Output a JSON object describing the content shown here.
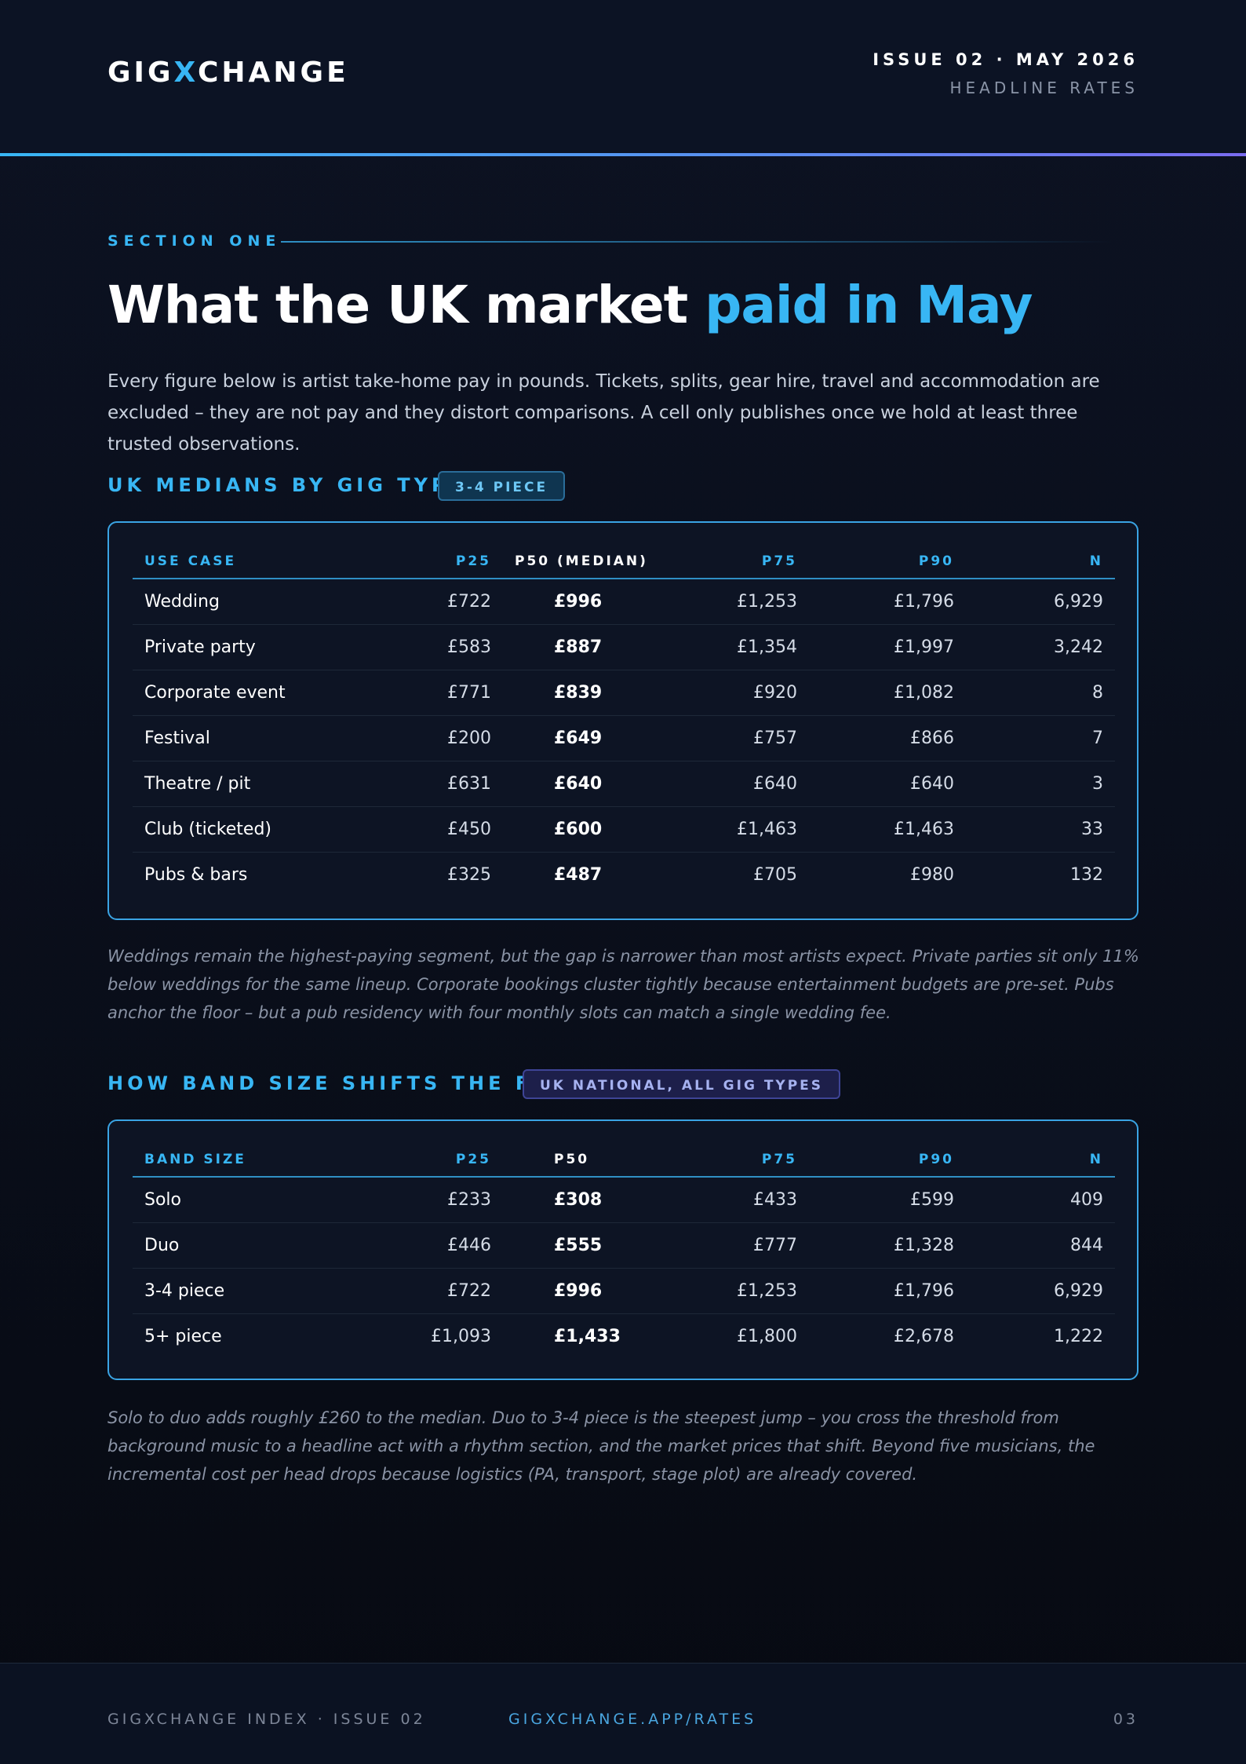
{
  "header": {
    "brand_pre": "GIG",
    "brand_accent": "X",
    "brand_post": "CHANGE",
    "issue": "ISSUE 02 · MAY 2026",
    "subtitle": "HEADLINE RATES"
  },
  "section": {
    "label": "SECTION ONE",
    "headline_main": "What the UK market ",
    "headline_accent": "paid in May",
    "intro": "Every figure below is artist take-home pay in pounds. Tickets, splits, gear hire, travel and accommodation are excluded – they are not pay and they distort comparisons. A cell only publishes once we hold at least three trusted observations."
  },
  "gig_type_table": {
    "title": "UK MEDIANS BY GIG TYPE",
    "badge": "3-4 PIECE",
    "columns": [
      "USE CASE",
      "P25",
      "P50 (MEDIAN)",
      "P75",
      "P90",
      "N"
    ],
    "rows": [
      {
        "label": "Wedding",
        "p25": "£722",
        "p50": "£996",
        "p75": "£1,253",
        "p90": "£1,796",
        "n": "6,929"
      },
      {
        "label": "Private party",
        "p25": "£583",
        "p50": "£887",
        "p75": "£1,354",
        "p90": "£1,997",
        "n": "3,242"
      },
      {
        "label": "Corporate event",
        "p25": "£771",
        "p50": "£839",
        "p75": "£920",
        "p90": "£1,082",
        "n": "8"
      },
      {
        "label": "Festival",
        "p25": "£200",
        "p50": "£649",
        "p75": "£757",
        "p90": "£866",
        "n": "7"
      },
      {
        "label": "Theatre / pit",
        "p25": "£631",
        "p50": "£640",
        "p75": "£640",
        "p90": "£640",
        "n": "3"
      },
      {
        "label": "Club (ticketed)",
        "p25": "£450",
        "p50": "£600",
        "p75": "£1,463",
        "p90": "£1,463",
        "n": "33"
      },
      {
        "label": "Pubs & bars",
        "p25": "£325",
        "p50": "£487",
        "p75": "£705",
        "p90": "£980",
        "n": "132"
      }
    ],
    "note": "Weddings remain the highest-paying segment, but the gap is narrower than most artists expect. Private parties sit only 11% below weddings for the same lineup. Corporate bookings cluster tightly because entertainment budgets are pre-set. Pubs anchor the floor – but a pub residency with four monthly slots can match a single wedding fee."
  },
  "band_size_table": {
    "title": "HOW BAND SIZE SHIFTS THE FEE",
    "badge": "UK NATIONAL, ALL GIG TYPES",
    "columns": [
      "BAND SIZE",
      "P25",
      "P50",
      "P75",
      "P90",
      "N"
    ],
    "rows": [
      {
        "label": "Solo",
        "p25": "£233",
        "p50": "£308",
        "p75": "£433",
        "p90": "£599",
        "n": "409"
      },
      {
        "label": "Duo",
        "p25": "£446",
        "p50": "£555",
        "p75": "£777",
        "p90": "£1,328",
        "n": "844"
      },
      {
        "label": "3-4 piece",
        "p25": "£722",
        "p50": "£996",
        "p75": "£1,253",
        "p90": "£1,796",
        "n": "6,929"
      },
      {
        "label": "5+ piece",
        "p25": "£1,093",
        "p50": "£1,433",
        "p75": "£1,800",
        "p90": "£2,678",
        "n": "1,222"
      }
    ],
    "note": "Solo to duo adds roughly £260 to the median. Duo to 3-4 piece is the steepest jump – you cross the threshold from background music to a headline act with a rhythm section, and the market prices that shift. Beyond five musicians, the incremental cost per head drops because logistics (PA, transport, stage plot) are already covered."
  },
  "footer": {
    "left": "GIGXCHANGE INDEX · ISSUE 02",
    "center": "GIGXCHANGE.APP/RATES",
    "page": "03"
  },
  "colors": {
    "accent": "#38b6f4",
    "background": "#0a0f1c",
    "card_border": "#3aa4e4",
    "badge_purple": "#a6b2f0"
  }
}
